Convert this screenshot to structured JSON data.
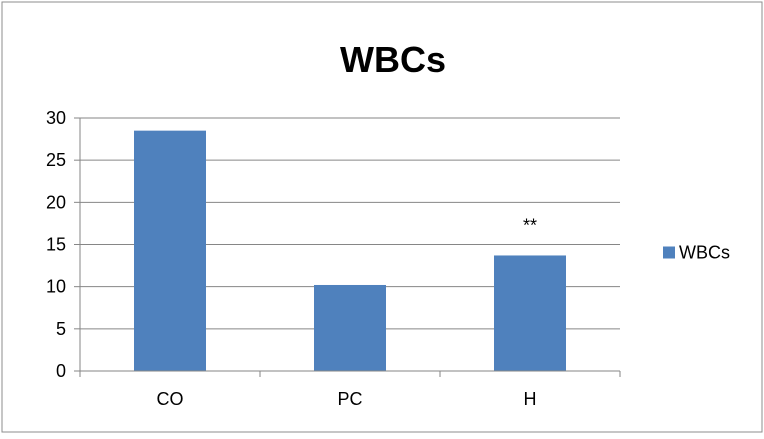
{
  "chart_data": {
    "type": "bar",
    "title": "WBCs",
    "categories": [
      "CO",
      "PC",
      "H"
    ],
    "series": [
      {
        "name": "WBCs",
        "values": [
          28.5,
          10.2,
          13.7
        ],
        "color": "#4F81BD"
      }
    ],
    "annotations": [
      {
        "category": "H",
        "text": "**"
      }
    ],
    "ylim": [
      0,
      30
    ],
    "yticks": [
      0,
      5,
      10,
      15,
      20,
      25,
      30
    ],
    "xlabel": "",
    "ylabel": "",
    "grid": true,
    "legend_position": "right"
  }
}
